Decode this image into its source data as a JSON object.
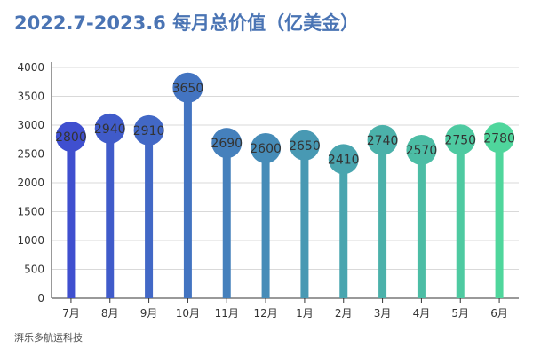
{
  "title": "2022.7-2023.6 每月总价值（亿美金）",
  "source": "湃乐多航运科技",
  "colors": {
    "gradient_start": "#3f4fcf",
    "gradient_end": "#4fd69c",
    "grid": "#d9d9d9",
    "axis": "#333333"
  },
  "chart_data": {
    "type": "bar",
    "style": "lollipop",
    "title": "2022.7-2023.6 每月总价值（亿美金）",
    "xlabel": "",
    "ylabel": "",
    "ylim": [
      0,
      4000
    ],
    "yticks": [
      0,
      500,
      1000,
      1500,
      2000,
      2500,
      3000,
      3500,
      4000
    ],
    "grid": true,
    "categories": [
      "7月",
      "8月",
      "9月",
      "10月",
      "11月",
      "12月",
      "1月",
      "2月",
      "3月",
      "4月",
      "5月",
      "6月"
    ],
    "values": [
      2800,
      2940,
      2910,
      3650,
      2690,
      2600,
      2650,
      2410,
      2740,
      2570,
      2750,
      2780
    ]
  }
}
